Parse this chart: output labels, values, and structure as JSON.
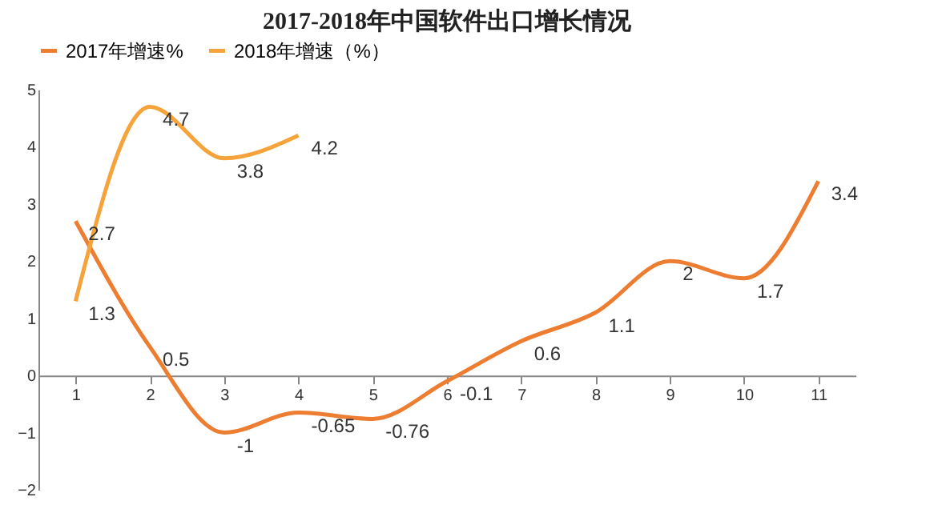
{
  "chart_data": {
    "type": "line",
    "title": "2017-2018年中国软件出口增长情况",
    "categories": [
      "1",
      "2",
      "3",
      "4",
      "5",
      "6",
      "7",
      "8",
      "9",
      "10",
      "11"
    ],
    "series": [
      {
        "name": "2017年增速%",
        "color": "#ed7d31",
        "values": [
          2.7,
          0.5,
          -1,
          -0.65,
          -0.76,
          -0.1,
          0.6,
          1.1,
          2,
          1.7,
          3.4
        ]
      },
      {
        "name": "2018年增速（%）",
        "color": "#f5a33a",
        "values": [
          1.3,
          4.7,
          3.8,
          4.2,
          null,
          null,
          null,
          null,
          null,
          null,
          null
        ]
      }
    ],
    "ylim": [
      -2,
      5
    ],
    "yticks": [
      -2,
      -1,
      0,
      1,
      2,
      3,
      4,
      5
    ],
    "grid": false,
    "legend": "top",
    "marker": "none",
    "line_style": "solid",
    "data_labels": true
  }
}
